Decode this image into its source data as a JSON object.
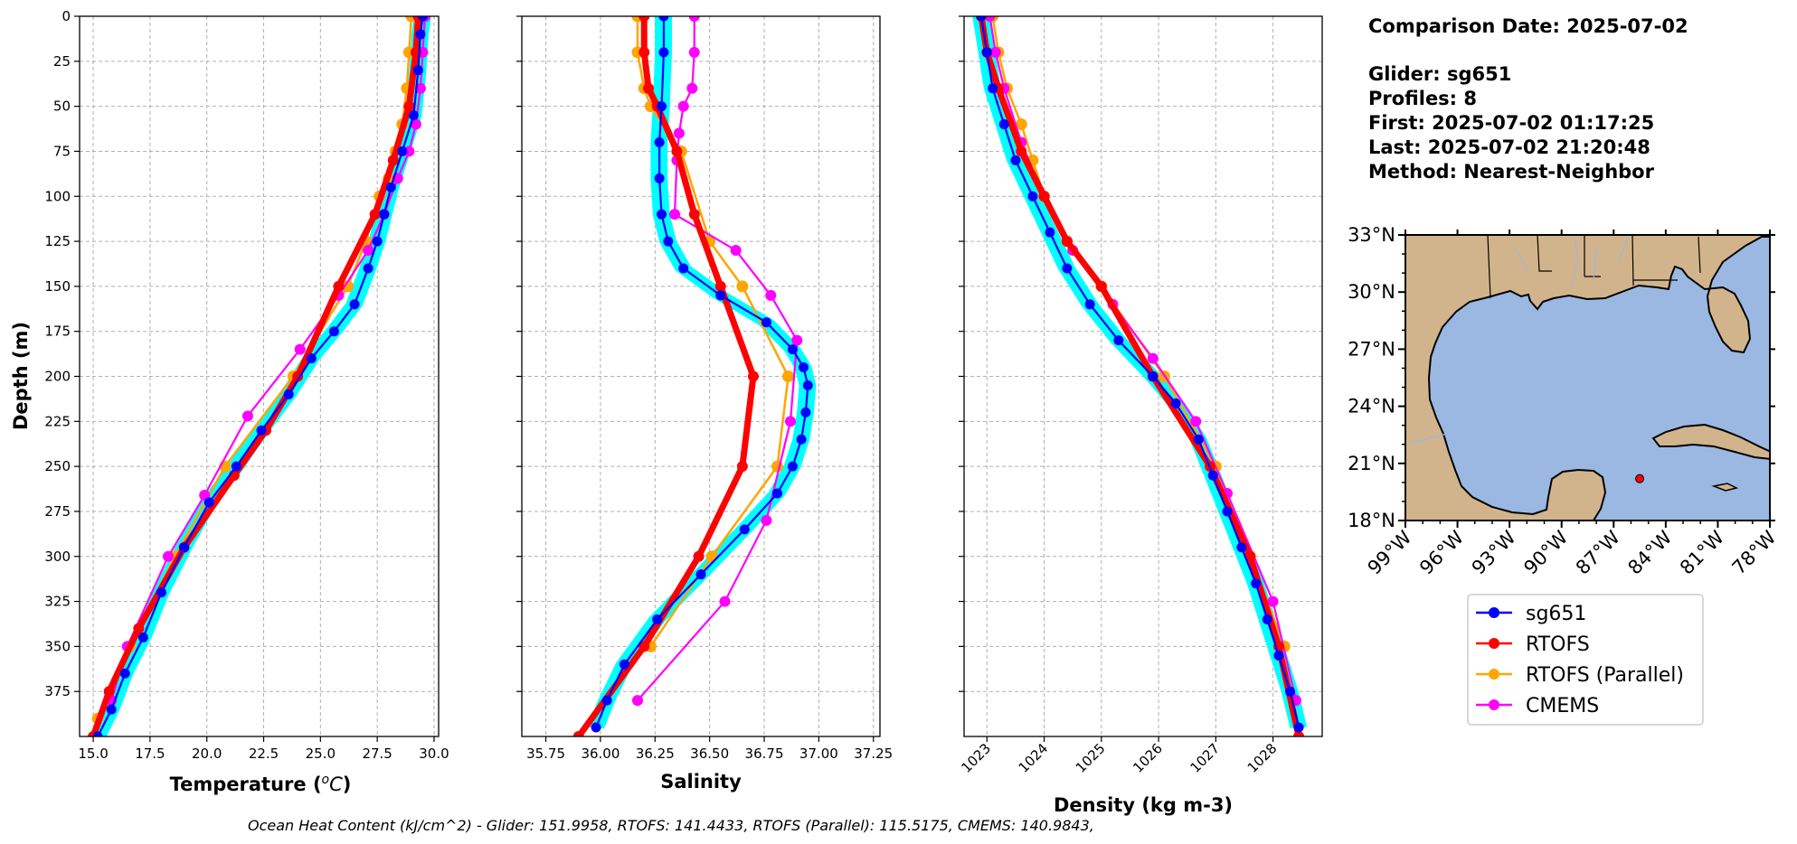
{
  "info": {
    "comparison": "Comparison Date: 2025-07-02",
    "glider": "Glider: sg651",
    "profiles": "Profiles: 8",
    "first": "First: 2025-07-02 01:17:25",
    "last": "Last: 2025-07-02 21:20:48",
    "method": "Method: Nearest-Neighbor"
  },
  "footer": "Ocean Heat Content (kJ/cm^2) - Glider: 151.9958,  RTOFS: 141.4433,  RTOFS (Parallel): 115.5175,  CMEMS: 140.9843,",
  "colors": {
    "glider": "#0000ff",
    "glider_individual": "#00ffff",
    "rtofs": "#ff0000",
    "rtofs_parallel": "#ffa500",
    "cmems": "#ff00ff",
    "land": "#d2b48c",
    "ocean": "#9ab8e2"
  },
  "legend": [
    "sg651",
    "RTOFS",
    "RTOFS (Parallel)",
    "CMEMS"
  ],
  "chart_data": [
    {
      "type": "line",
      "xlabel": "Temperature (°C)",
      "ylabel": "Depth (m)",
      "xlim": [
        14.4,
        30.2
      ],
      "ylim": [
        400,
        0
      ],
      "xticks": [
        "15.0",
        "17.5",
        "20.0",
        "22.5",
        "25.0",
        "27.5",
        "30.0"
      ],
      "yticks": [
        "0",
        "25",
        "50",
        "75",
        "100",
        "125",
        "150",
        "175",
        "200",
        "225",
        "250",
        "275",
        "300",
        "325",
        "350",
        "375"
      ],
      "grid": true,
      "series": [
        {
          "name": "sg651",
          "x": [
            29.5,
            29.4,
            29.3,
            29.1,
            28.6,
            28.1,
            27.8,
            27.5,
            27.1,
            26.5,
            25.6,
            24.6,
            23.6,
            22.4,
            21.3,
            20.1,
            19.0,
            18.0,
            17.2,
            16.4,
            15.8,
            15.2
          ],
          "y": [
            0,
            10,
            30,
            55,
            75,
            95,
            110,
            125,
            140,
            160,
            175,
            190,
            210,
            230,
            250,
            270,
            295,
            320,
            345,
            365,
            385,
            400
          ]
        },
        {
          "name": "RTOFS",
          "x": [
            29.3,
            29.2,
            28.9,
            28.2,
            27.4,
            25.8,
            24.0,
            22.6,
            21.2,
            19.0,
            17.0,
            15.7,
            15.0
          ],
          "y": [
            0,
            20,
            50,
            80,
            110,
            150,
            200,
            230,
            255,
            295,
            340,
            375,
            400
          ]
        },
        {
          "name": "RTOFS (Parallel)",
          "x": [
            29.0,
            28.9,
            28.8,
            28.6,
            28.3,
            28.0,
            27.6,
            27.0,
            26.2,
            23.8,
            20.8,
            18.6,
            16.6,
            15.2
          ],
          "y": [
            0,
            20,
            40,
            60,
            75,
            90,
            100,
            125,
            150,
            200,
            250,
            300,
            350,
            390
          ]
        },
        {
          "name": "CMEMS",
          "x": [
            29.6,
            29.5,
            29.4,
            29.2,
            28.9,
            28.4,
            27.8,
            27.1,
            25.8,
            24.1,
            21.8,
            19.9,
            18.3,
            16.5,
            15.8
          ],
          "y": [
            0,
            20,
            40,
            60,
            75,
            90,
            110,
            130,
            155,
            185,
            222,
            266,
            300,
            350,
            380
          ]
        }
      ]
    },
    {
      "type": "line",
      "xlabel": "Salinity",
      "xlim": [
        35.64,
        37.28
      ],
      "ylim": [
        400,
        0
      ],
      "xticks": [
        "35.75",
        "36.00",
        "36.25",
        "36.50",
        "36.75",
        "37.00",
        "37.25"
      ],
      "grid": true,
      "series": [
        {
          "name": "sg651",
          "x": [
            36.29,
            36.29,
            36.28,
            36.27,
            36.27,
            36.28,
            36.31,
            36.38,
            36.55,
            36.76,
            36.88,
            36.93,
            36.95,
            36.94,
            36.92,
            36.88,
            36.81,
            36.66,
            36.46,
            36.26,
            36.11,
            36.03,
            35.98
          ],
          "y": [
            0,
            20,
            50,
            70,
            90,
            110,
            125,
            140,
            155,
            170,
            185,
            195,
            205,
            220,
            235,
            250,
            265,
            285,
            310,
            335,
            360,
            380,
            395
          ]
        },
        {
          "name": "RTOFS",
          "x": [
            36.2,
            36.2,
            36.22,
            36.26,
            36.35,
            36.43,
            36.55,
            36.7,
            36.65,
            36.45,
            36.2,
            35.9
          ],
          "y": [
            0,
            20,
            40,
            50,
            75,
            110,
            150,
            200,
            250,
            300,
            350,
            400
          ]
        },
        {
          "name": "RTOFS (Parallel)",
          "x": [
            36.17,
            36.17,
            36.2,
            36.23,
            36.37,
            36.5,
            36.65,
            36.86,
            36.81,
            36.51,
            36.23
          ],
          "y": [
            0,
            20,
            40,
            50,
            75,
            125,
            150,
            200,
            250,
            300,
            350
          ]
        },
        {
          "name": "CMEMS",
          "x": [
            36.43,
            36.43,
            36.42,
            36.38,
            36.36,
            36.35,
            36.34,
            36.62,
            36.78,
            36.9,
            36.87,
            36.76,
            36.57,
            36.17
          ],
          "y": [
            0,
            20,
            40,
            50,
            65,
            80,
            110,
            130,
            155,
            180,
            225,
            280,
            325,
            380
          ]
        }
      ]
    },
    {
      "type": "line",
      "xlabel": "Density (kg m-3)",
      "xlim": [
        1022.6,
        1028.86
      ],
      "ylim": [
        400,
        0
      ],
      "xticks": [
        "1023",
        "1024",
        "1025",
        "1026",
        "1027",
        "1028"
      ],
      "grid": true,
      "series": [
        {
          "name": "sg651",
          "x": [
            1022.9,
            1023.0,
            1023.1,
            1023.3,
            1023.5,
            1023.8,
            1024.1,
            1024.4,
            1024.8,
            1025.3,
            1025.9,
            1026.3,
            1026.7,
            1026.95,
            1027.2,
            1027.45,
            1027.7,
            1027.9,
            1028.1,
            1028.3,
            1028.45
          ],
          "y": [
            0,
            20,
            40,
            60,
            80,
            100,
            120,
            140,
            160,
            180,
            200,
            215,
            235,
            255,
            275,
            295,
            315,
            335,
            355,
            375,
            395
          ]
        },
        {
          "name": "RTOFS",
          "x": [
            1022.9,
            1023.0,
            1023.2,
            1023.6,
            1024.0,
            1024.4,
            1025.0,
            1025.9,
            1026.9,
            1027.6,
            1028.1,
            1028.45
          ],
          "y": [
            0,
            20,
            40,
            75,
            100,
            125,
            150,
            200,
            250,
            300,
            350,
            400
          ]
        },
        {
          "name": "RTOFS (Parallel)",
          "x": [
            1023.1,
            1023.2,
            1023.35,
            1023.6,
            1023.8,
            1024.0,
            1024.4,
            1025.0,
            1026.1,
            1027.0,
            1027.6,
            1028.2
          ],
          "y": [
            0,
            20,
            40,
            60,
            80,
            100,
            125,
            150,
            200,
            250,
            300,
            350
          ]
        },
        {
          "name": "CMEMS",
          "x": [
            1023.05,
            1023.15,
            1023.3,
            1023.6,
            1024.0,
            1024.5,
            1025.2,
            1025.9,
            1026.65,
            1027.2,
            1028.0,
            1028.4
          ],
          "y": [
            0,
            20,
            40,
            70,
            100,
            130,
            160,
            190,
            225,
            265,
            325,
            380
          ]
        }
      ]
    }
  ],
  "map": {
    "lon_ticks": [
      "99°W",
      "96°W",
      "93°W",
      "90°W",
      "87°W",
      "84°W",
      "81°W",
      "78°W"
    ],
    "lat_ticks": [
      "33°N",
      "30°N",
      "27°N",
      "24°N",
      "21°N",
      "18°N"
    ],
    "lon_range": [
      -99,
      -78
    ],
    "lat_range": [
      18,
      33
    ],
    "glider_location": {
      "lon": -85.5,
      "lat": 20.2
    }
  }
}
